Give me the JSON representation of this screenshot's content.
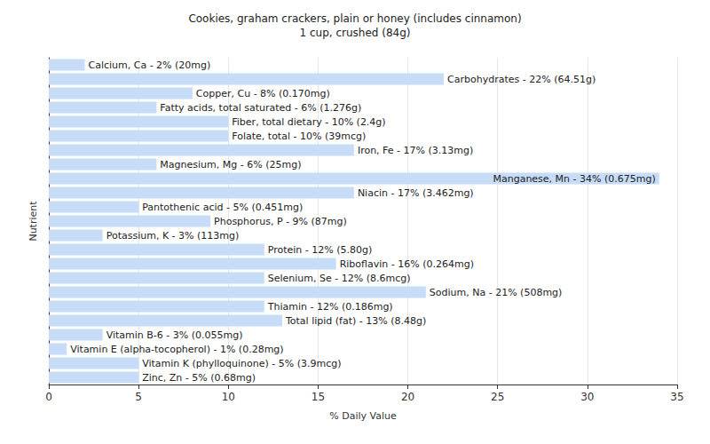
{
  "chart_data": {
    "type": "bar",
    "title": "Cookies, graham crackers, plain or honey (includes cinnamon)",
    "subtitle": "1 cup, crushed (84g)",
    "x_label": "% Daily Value",
    "y_label": "Nutrient",
    "orientation": "horizontal",
    "categories": [
      "Calcium, Ca",
      "Carbohydrates",
      "Copper, Cu",
      "Fatty acids, total saturated",
      "Fiber, total dietary",
      "Folate, total",
      "Iron, Fe",
      "Magnesium, Mg",
      "Manganese, Mn",
      "Niacin",
      "Pantothenic acid",
      "Phosphorus, P",
      "Potassium, K",
      "Protein",
      "Riboflavin",
      "Selenium, Se",
      "Sodium, Na",
      "Thiamin",
      "Total lipid (fat)",
      "Vitamin B-6",
      "Vitamin E (alpha-tocopherol)",
      "Vitamin K (phylloquinone)",
      "Zinc, Zn"
    ],
    "values": [
      2,
      22,
      8,
      6,
      10,
      10,
      17,
      6,
      34,
      17,
      5,
      9,
      3,
      12,
      16,
      12,
      21,
      12,
      13,
      3,
      1,
      5,
      5
    ],
    "value_labels": [
      "Calcium, Ca - 2% (20mg)",
      "Carbohydrates - 22% (64.51g)",
      "Copper, Cu - 8% (0.170mg)",
      "Fatty acids, total saturated - 6% (1.276g)",
      "Fiber, total dietary - 10% (2.4g)",
      "Folate, total - 10% (39mcg)",
      "Iron, Fe - 17% (3.13mg)",
      "Magnesium, Mg - 6% (25mg)",
      "Manganese, Mn - 34% (0.675mg)",
      "Niacin - 17% (3.462mg)",
      "Pantothenic acid - 5% (0.451mg)",
      "Phosphorus, P - 9% (87mg)",
      "Potassium, K - 3% (113mg)",
      "Protein - 12% (5.80g)",
      "Riboflavin - 16% (0.264mg)",
      "Selenium, Se - 12% (8.6mcg)",
      "Sodium, Na - 21% (508mg)",
      "Thiamin - 12% (0.186mg)",
      "Total lipid (fat) - 13% (8.48g)",
      "Vitamin B-6 - 3% (0.055mg)",
      "Vitamin E (alpha-tocopherol) - 1% (0.28mg)",
      "Vitamin K (phylloquinone) - 5% (3.9mcg)",
      "Zinc, Zn - 5% (0.68mg)"
    ],
    "color": "#c6dcf7",
    "xlim": [
      0,
      35
    ],
    "xticks": [
      0,
      5,
      10,
      15,
      20,
      25,
      30,
      35
    ],
    "grid": true,
    "data_labels": true,
    "tick_labels": "x"
  }
}
